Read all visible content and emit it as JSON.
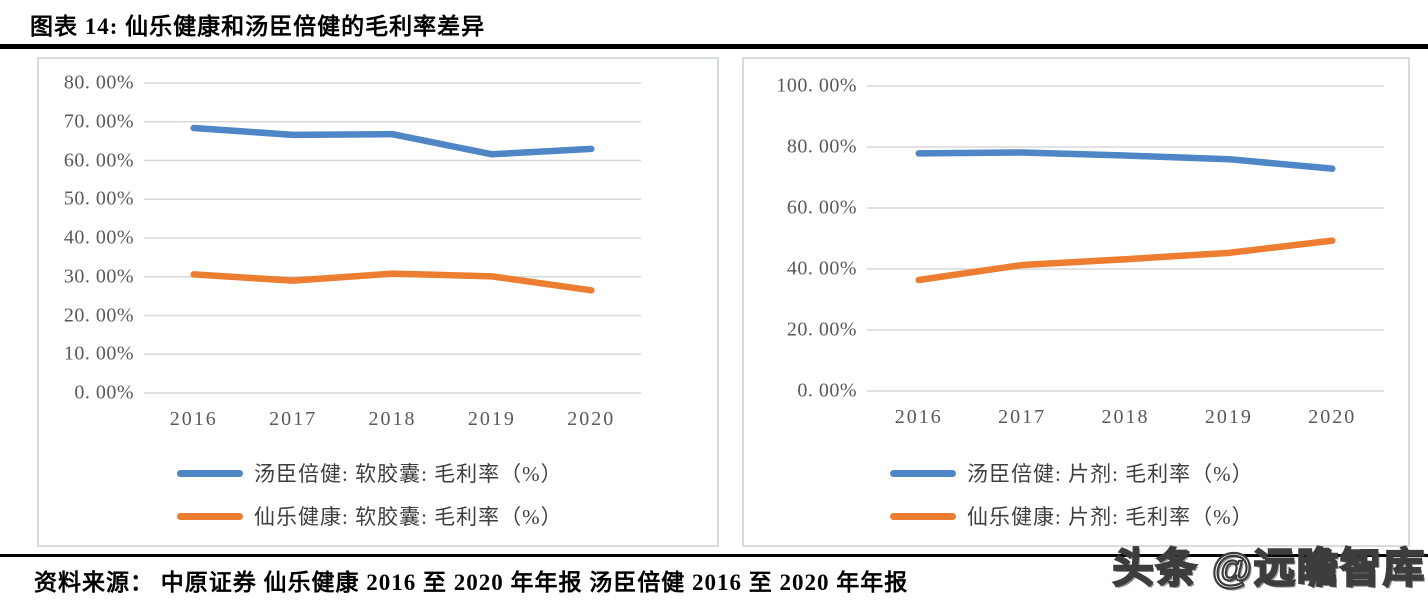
{
  "page": {
    "title": "图表 14: 仙乐健康和汤臣倍健的毛利率差异",
    "source": "资料来源： 中原证券 仙乐健康 2016 至 2020 年年报 汤臣倍健 2016 至 2020 年年报",
    "watermark": "头条 @远瞻智库"
  },
  "colors": {
    "series_blue": "#4F86C6",
    "series_orange": "#ED7D31",
    "gridline": "#D9D9D9",
    "axis_text": "#595959",
    "legend_text": "#3F3F3F",
    "box_border": "#D6DDE3",
    "rule_black": "#000000"
  },
  "chart_data": [
    {
      "type": "line",
      "title": "",
      "xlabel": "",
      "ylabel": "",
      "grid": true,
      "legend_position": "bottom",
      "categories": [
        "2016",
        "2017",
        "2018",
        "2019",
        "2020"
      ],
      "ylim": [
        0,
        80
      ],
      "ytick_step": 10,
      "ytick_labels": [
        "0. 00%",
        "10. 00%",
        "20. 00%",
        "30. 00%",
        "40. 00%",
        "50. 00%",
        "60. 00%",
        "70. 00%",
        "80. 00%"
      ],
      "series": [
        {
          "name": "汤臣倍健: 软胶囊: 毛利率（%）",
          "color_key": "series_blue",
          "values": [
            68.4,
            66.6,
            66.8,
            61.6,
            63.0
          ]
        },
        {
          "name": "仙乐健康: 软胶囊: 毛利率（%）",
          "color_key": "series_orange",
          "values": [
            30.6,
            29.0,
            30.8,
            30.1,
            26.5
          ]
        }
      ]
    },
    {
      "type": "line",
      "title": "",
      "xlabel": "",
      "ylabel": "",
      "grid": true,
      "legend_position": "bottom",
      "categories": [
        "2016",
        "2017",
        "2018",
        "2019",
        "2020"
      ],
      "ylim": [
        0,
        100
      ],
      "ytick_step": 20,
      "ytick_labels": [
        "0. 00%",
        "20. 00%",
        "40. 00%",
        "60. 00%",
        "80. 00%",
        "100. 00%"
      ],
      "series": [
        {
          "name": "汤臣倍健: 片剂: 毛利率（%）",
          "color_key": "series_blue",
          "values": [
            77.9,
            78.2,
            77.2,
            76.0,
            72.9
          ]
        },
        {
          "name": "仙乐健康: 片剂: 毛利率（%）",
          "color_key": "series_orange",
          "values": [
            36.4,
            41.3,
            43.2,
            45.3,
            49.3
          ]
        }
      ]
    }
  ]
}
